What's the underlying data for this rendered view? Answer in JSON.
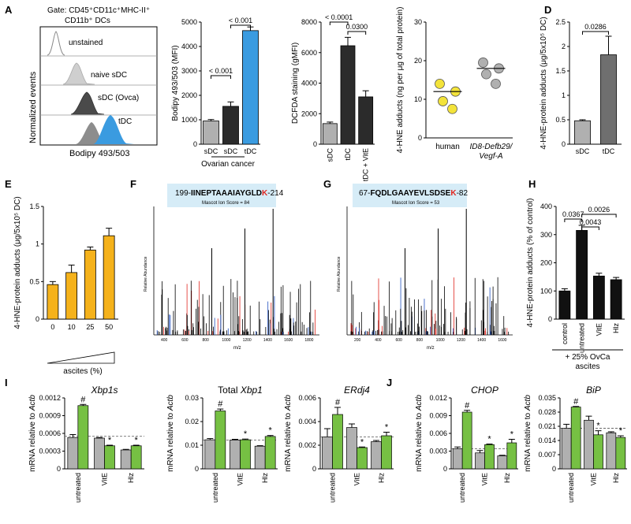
{
  "colors": {
    "gray_bar": "#b0b0b0",
    "dark_bar": "#2b2b2b",
    "mid_bar": "#6f6f6f",
    "blue_bar": "#3a9be0",
    "orange_bar": "#f5b21b",
    "green_bar": "#76c043",
    "yellow_dot": "#f3e33a",
    "gray_dot": "#a0a0a0",
    "spectrum_red": "#e0261f",
    "spectrum_blue": "#1f4fbf",
    "peptide_box": "#d6ecf7"
  },
  "panel_A": {
    "letter": "A",
    "gate_line1": "Gate: CD45⁺CD11c⁺MHC-II⁺",
    "gate_line2": "CD11b⁺ DCs",
    "histogram_labels": [
      "unstained",
      "naive sDC",
      "sDC (Ovca)",
      "tDC"
    ],
    "histogram_ylabel": "Normalized events",
    "histogram_xlabel": "Bodipy 493/503"
  },
  "panel_D": {
    "letter": "D"
  },
  "panel_E": {
    "letter": "E",
    "axis_note": "ascites (%)"
  },
  "panel_F": {
    "letter": "F",
    "peptide": "199-IINEPTAAAIAYGLD K-214",
    "peptide_prefix": "199-",
    "peptide_seq": "IINEPTAAAIAYGLD",
    "peptide_k": "K",
    "peptide_suffix": "-214",
    "mascot": "Mascot Ion Score = 84",
    "ylabel": "Relative Abundance",
    "xlabel": "m/z",
    "xticks": [
      "400",
      "600",
      "800",
      "1000",
      "1200",
      "1400",
      "1600",
      "1800"
    ]
  },
  "panel_G": {
    "letter": "G",
    "peptide_prefix": "67-",
    "peptide_seq": "FQDLGAAYEVLSDSE",
    "peptide_k": "K",
    "peptide_suffix": "-82",
    "mascot": "Mascot Ion Score = 53",
    "ylabel": "Relative Abundance",
    "xlabel": "m/z",
    "xticks": [
      "200",
      "400",
      "600",
      "800",
      "1000",
      "1200",
      "1400",
      "1600"
    ]
  },
  "panel_H": {
    "letter": "H",
    "group_note": "+ 25% OvCa ascites"
  },
  "panel_I": {
    "letter": "I"
  },
  "panel_J": {
    "letter": "J"
  },
  "chart_data": [
    {
      "id": "A2",
      "type": "bar",
      "panel": "A",
      "categories": [
        "sDC",
        "sDC",
        "tDC"
      ],
      "group_label": "Ovarian cancer",
      "values": [
        950,
        1550,
        4650
      ],
      "errors": [
        60,
        180,
        150
      ],
      "colors": [
        "gray",
        "dark",
        "blue"
      ],
      "ylabel": "Bodipy 493/503 (MFI)",
      "ylim": [
        0,
        5000
      ],
      "yticks": [
        0,
        1000,
        2000,
        3000,
        4000,
        5000
      ],
      "brackets": [
        {
          "from": 0,
          "to": 1,
          "label": "< 0.001"
        },
        {
          "from": 1,
          "to": 2,
          "label": "< 0.001"
        }
      ]
    },
    {
      "id": "B",
      "type": "bar",
      "panel": "B",
      "categories": [
        "sDC",
        "tDC",
        "tDC + VitE"
      ],
      "values": [
        1350,
        6450,
        3100
      ],
      "errors": [
        100,
        550,
        400
      ],
      "colors": [
        "gray",
        "dark",
        "dark"
      ],
      "ylabel": "DCFDA staining (gMFI)",
      "ylim": [
        0,
        8000
      ],
      "yticks": [
        0,
        2000,
        4000,
        6000,
        8000
      ],
      "brackets": [
        {
          "from": 0,
          "to": 1,
          "label": "< 0.0001"
        },
        {
          "from": 1,
          "to": 2,
          "label": "0.0300"
        }
      ]
    },
    {
      "id": "C",
      "type": "scatter",
      "panel": "C",
      "categories": [
        "human",
        "ID8-Defb29/Vegf-A"
      ],
      "groups": [
        {
          "category": "human",
          "values": [
            14,
            12,
            9.5,
            7.5
          ],
          "mean": 12,
          "color": "yellow"
        },
        {
          "category": "ID8-Defb29/Vegf-A",
          "values": [
            19.5,
            18,
            16.5,
            14
          ],
          "mean": 18,
          "color": "gray"
        }
      ],
      "ylabel": "4-HNE adducts (ng per μg of total protein)",
      "ylim": [
        0,
        30
      ],
      "yticks": [
        0,
        10,
        20,
        30
      ]
    },
    {
      "id": "D",
      "type": "bar",
      "panel": "D",
      "categories": [
        "sDC",
        "tDC"
      ],
      "values": [
        0.48,
        1.83
      ],
      "errors": [
        0.02,
        0.38
      ],
      "colors": [
        "gray",
        "mid"
      ],
      "ylabel": "4-HNE-protein adducts (μg/5x10⁵ DC)",
      "ylim": [
        0,
        2.5
      ],
      "yticks": [
        0.0,
        0.5,
        1.0,
        1.5,
        2.0,
        2.5
      ],
      "brackets": [
        {
          "from": 0,
          "to": 1,
          "label": "0.0286"
        }
      ]
    },
    {
      "id": "E",
      "type": "bar",
      "panel": "E",
      "categories": [
        "0",
        "10",
        "25",
        "50"
      ],
      "values": [
        0.46,
        0.62,
        0.92,
        1.11
      ],
      "errors": [
        0.04,
        0.1,
        0.04,
        0.1
      ],
      "colors": [
        "orange",
        "orange",
        "orange",
        "orange"
      ],
      "ylabel": "4-HNE-protein adducts (μg/5x10⁵ DC)",
      "xlabel": "ascites (%)",
      "ylim": [
        0,
        1.5
      ],
      "yticks": [
        0.0,
        0.5,
        1.0,
        1.5
      ]
    },
    {
      "id": "H",
      "type": "bar",
      "panel": "H",
      "categories": [
        "control",
        "untreated",
        "VitE",
        "Hlz"
      ],
      "values": [
        100,
        315,
        153,
        140
      ],
      "errors": [
        8,
        18,
        10,
        8
      ],
      "colors": [
        "black",
        "black",
        "black",
        "black"
      ],
      "ylabel": "4-HNE-protein adducts (% of control)",
      "ylim": [
        0,
        400
      ],
      "yticks": [
        0,
        100,
        200,
        300,
        400
      ],
      "brackets": [
        {
          "from": 0,
          "to": 1,
          "label": "0.0367"
        },
        {
          "from": 1,
          "to": 2,
          "label": "0.0043"
        },
        {
          "from": 1,
          "to": 3,
          "label": "0.0026"
        }
      ]
    },
    {
      "id": "I1",
      "type": "bar",
      "panel": "I",
      "title": "Xbp1s",
      "categories": [
        "untreated",
        "VitE",
        "Hlz"
      ],
      "series": [
        {
          "name": "gray",
          "values": [
            0.00053,
            0.00052,
            0.00032
          ],
          "errors": [
            5e-05,
            1e-05,
            1e-05
          ]
        },
        {
          "name": "green",
          "values": [
            0.00107,
            0.00039,
            0.00039
          ],
          "errors": [
            2e-05,
            1e-05,
            1e-05
          ]
        }
      ],
      "marks": {
        "green": [
          "#",
          "*",
          "*"
        ]
      },
      "baseline": 0.00055,
      "ylabel": "mRNA relative to Actb",
      "ylim": [
        0,
        0.0012
      ],
      "yticks": [
        0,
        0.0003,
        0.0006,
        0.0009,
        0.0012
      ],
      "ytick_labels": [
        "0",
        "0.0003",
        "0.0006",
        "0.0009",
        "0.0012"
      ]
    },
    {
      "id": "I2",
      "type": "bar",
      "panel": "I",
      "title": "Total Xbp1",
      "categories": [
        "untreated",
        "VitE",
        "Hlz"
      ],
      "series": [
        {
          "name": "gray",
          "values": [
            0.0123,
            0.0122,
            0.0096
          ],
          "errors": [
            0.0005,
            0.0003,
            0.0002
          ]
        },
        {
          "name": "green",
          "values": [
            0.0245,
            0.0123,
            0.0137
          ],
          "errors": [
            0.0008,
            0.0003,
            0.0004
          ]
        }
      ],
      "marks": {
        "green": [
          "#",
          "*",
          "*"
        ]
      },
      "baseline": 0.0122,
      "ylabel": "mRNA relative to Actb",
      "ylim": [
        0,
        0.03
      ],
      "yticks": [
        0,
        0.01,
        0.02,
        0.03
      ],
      "ytick_labels": [
        "0",
        "0.01",
        "0.02",
        "0.03"
      ]
    },
    {
      "id": "I3",
      "type": "bar",
      "panel": "I",
      "title": "ERdj4",
      "categories": [
        "untreated",
        "VitE",
        "Hlz"
      ],
      "series": [
        {
          "name": "gray",
          "values": [
            0.0027,
            0.0035,
            0.0023
          ],
          "errors": [
            0.0007,
            0.0003,
            0.0001
          ]
        },
        {
          "name": "green",
          "values": [
            0.0046,
            0.0018,
            0.0028
          ],
          "errors": [
            0.0006,
            5e-05,
            0.0003
          ]
        }
      ],
      "marks": {
        "green": [
          "#",
          "*",
          "*"
        ]
      },
      "baseline": 0.0027,
      "ylabel": "mRNA relative to Actb",
      "ylim": [
        0,
        0.006
      ],
      "yticks": [
        0,
        0.002,
        0.004,
        0.006
      ],
      "ytick_labels": [
        "0",
        "0.002",
        "0.004",
        "0.006"
      ]
    },
    {
      "id": "J1",
      "type": "bar",
      "panel": "J",
      "title": "CHOP",
      "categories": [
        "untreated",
        "VitE",
        "Hlz"
      ],
      "series": [
        {
          "name": "gray",
          "values": [
            0.0034,
            0.0027,
            0.0022
          ],
          "errors": [
            0.0003,
            0.0004,
            0.0001
          ]
        },
        {
          "name": "green",
          "values": [
            0.0096,
            0.0041,
            0.0044
          ],
          "errors": [
            0.0003,
            0.0001,
            0.0006
          ]
        }
      ],
      "marks": {
        "green": [
          "#",
          "*",
          "*"
        ]
      },
      "baseline": 0.0034,
      "ylabel": "mRNA relative to Actb",
      "ylim": [
        0,
        0.012
      ],
      "yticks": [
        0,
        0.003,
        0.006,
        0.009,
        0.012
      ],
      "ytick_labels": [
        "0",
        "0.003",
        "0.006",
        "0.009",
        "0.012"
      ]
    },
    {
      "id": "J2",
      "type": "bar",
      "panel": "J",
      "title": "BiP",
      "categories": [
        "untreated",
        "VitE",
        "Hlz"
      ],
      "series": [
        {
          "name": "gray",
          "values": [
            0.02,
            0.024,
            0.0178
          ],
          "errors": [
            0.002,
            0.002,
            0.0005
          ]
        },
        {
          "name": "green",
          "values": [
            0.0305,
            0.0168,
            0.0155
          ],
          "errors": [
            0.0003,
            0.002,
            0.0008
          ]
        }
      ],
      "marks": {
        "green": [
          "#",
          "*",
          "*"
        ]
      },
      "baseline": 0.02,
      "ylabel": "mRNA relative to Actb",
      "ylim": [
        0,
        0.035
      ],
      "yticks": [
        0,
        0.007,
        0.014,
        0.021,
        0.028,
        0.035
      ],
      "ytick_labels": [
        "0",
        "0.007",
        "0.014",
        "0.021",
        "0.028",
        "0.035"
      ]
    }
  ]
}
